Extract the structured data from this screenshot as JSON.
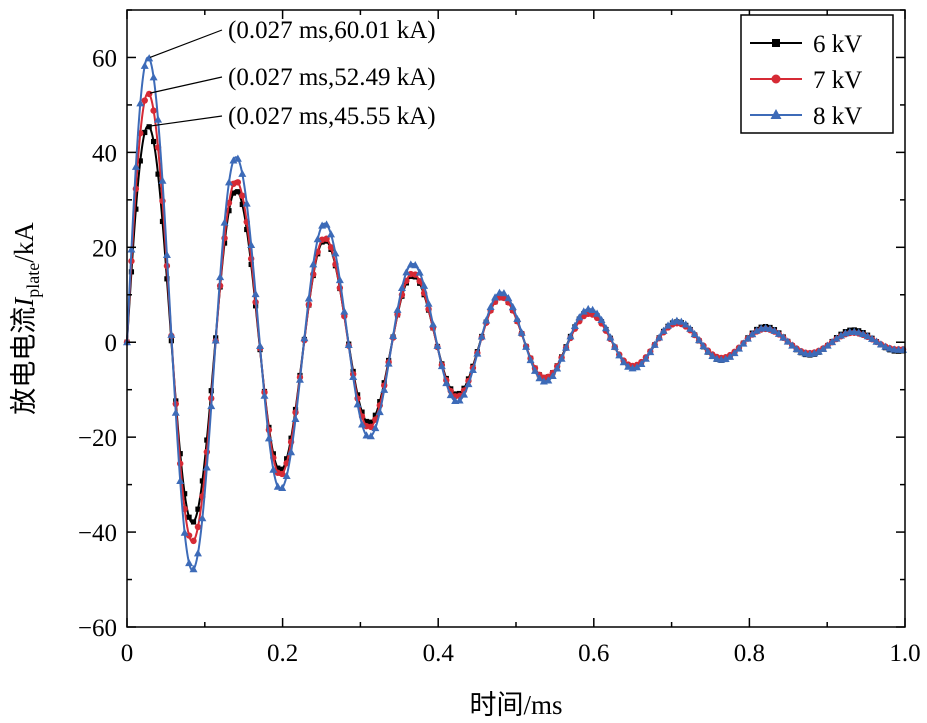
{
  "chart_data": {
    "type": "line",
    "title": "",
    "xlabel": "时间/ms",
    "ylabel_main": "放电电流",
    "ylabel_symbol": "I",
    "ylabel_subscript": "plate",
    "ylabel_unit": "/kA",
    "xlim": [
      0,
      1.0
    ],
    "ylim": [
      -60,
      70
    ],
    "xticks": [
      0,
      0.2,
      0.4,
      0.6,
      0.8,
      1.0
    ],
    "xtick_labels": [
      "0",
      "0.2",
      "0.4",
      "0.6",
      "0.8",
      "1.0"
    ],
    "yticks": [
      -60,
      -40,
      -20,
      0,
      20,
      40,
      60
    ],
    "ytick_labels": [
      "−60",
      "−40",
      "−20",
      "0",
      "20",
      "40",
      "60"
    ],
    "grid": false,
    "legend_position": "top-right",
    "series": [
      {
        "name": "6 kV",
        "color": "#000000",
        "marker": "square",
        "x": [
          0,
          0.027,
          0.084,
          0.14,
          0.197,
          0.254,
          0.311,
          0.367,
          0.424,
          0.481,
          0.537,
          0.594,
          0.65,
          0.707,
          0.764,
          0.82,
          0.877,
          0.933,
          0.99,
          1.0
        ],
        "y": [
          0,
          45.55,
          -38,
          32,
          -27,
          21.5,
          -17,
          14,
          -11,
          9.5,
          -7.5,
          6.5,
          -5.3,
          4.3,
          -3.8,
          3.3,
          -2.7,
          2.6,
          -1.9,
          -1.8
        ]
      },
      {
        "name": "7 kV",
        "color": "#d62a35",
        "marker": "circle",
        "x": [
          0,
          0.027,
          0.084,
          0.14,
          0.197,
          0.254,
          0.311,
          0.367,
          0.424,
          0.481,
          0.537,
          0.594,
          0.65,
          0.707,
          0.764,
          0.82,
          0.877,
          0.933,
          0.99,
          1.0
        ],
        "y": [
          0,
          52.49,
          -42,
          34,
          -28,
          22,
          -18,
          14.5,
          -11.5,
          9.5,
          -7.5,
          6,
          -5,
          4,
          -3.3,
          2.8,
          -2.3,
          2,
          -1.5,
          -1.5
        ]
      },
      {
        "name": "8 kV",
        "color": "#3d6bb8",
        "marker": "triangle",
        "x": [
          0,
          0.027,
          0.084,
          0.14,
          0.197,
          0.254,
          0.311,
          0.367,
          0.424,
          0.481,
          0.537,
          0.594,
          0.65,
          0.707,
          0.764,
          0.82,
          0.877,
          0.933,
          0.99,
          1.0
        ],
        "y": [
          0,
          60.01,
          -48,
          39,
          -31,
          25,
          -20,
          16.5,
          -12.5,
          10.5,
          -8.3,
          7,
          -5.5,
          4.5,
          -3.7,
          3,
          -2.5,
          2.2,
          -1.6,
          -1.6
        ]
      }
    ],
    "annotations": [
      {
        "text": "(0.027 ms,60.01 kA)",
        "x": 0.027,
        "y": 60.01
      },
      {
        "text": "(0.027 ms,52.49 kA)",
        "x": 0.027,
        "y": 52.49
      },
      {
        "text": "(0.027 ms,45.55 kA)",
        "x": 0.027,
        "y": 45.55
      }
    ]
  }
}
